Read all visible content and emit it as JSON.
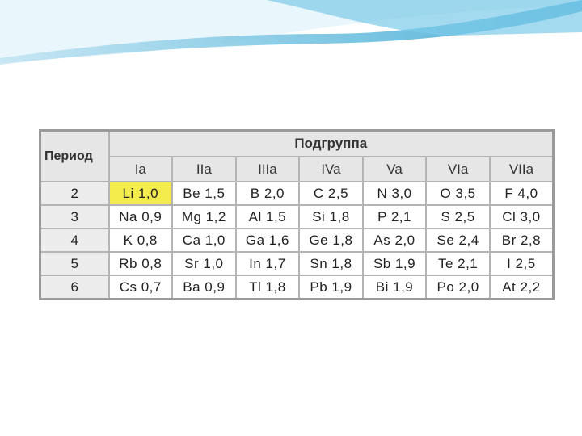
{
  "table": {
    "header": {
      "period_label": "Период",
      "group_label": "Подгруппа",
      "subgroups": [
        "Ia",
        "IIa",
        "IIIa",
        "IVa",
        "Va",
        "VIa",
        "VIIa"
      ]
    },
    "rows": [
      {
        "period": 2,
        "cells": [
          "Li 1,0",
          "Be 1,5",
          "B 2,0",
          "C 2,5",
          "N 3,0",
          "O 3,5",
          "F 4,0"
        ]
      },
      {
        "period": 3,
        "cells": [
          "Na 0,9",
          "Mg 1,2",
          "Al 1,5",
          "Si 1,8",
          "P 2,1",
          "S 2,5",
          "Cl 3,0"
        ]
      },
      {
        "period": 4,
        "cells": [
          "K 0,8",
          "Ca 1,0",
          "Ga 1,6",
          "Ge 1,8",
          "As 2,0",
          "Se 2,4",
          "Br 2,8"
        ]
      },
      {
        "period": 5,
        "cells": [
          "Rb 0,8",
          "Sr 1,0",
          "In 1,7",
          "Sn 1,8",
          "Sb 1,9",
          "Te 2,1",
          "I 2,5"
        ]
      },
      {
        "period": 6,
        "cells": [
          "Cs 0,7",
          "Ba 0,9",
          "Tl 1,8",
          "Pb 1,9",
          "Bi 1,9",
          "Po 2,0",
          "At 2,2"
        ]
      }
    ]
  }
}
